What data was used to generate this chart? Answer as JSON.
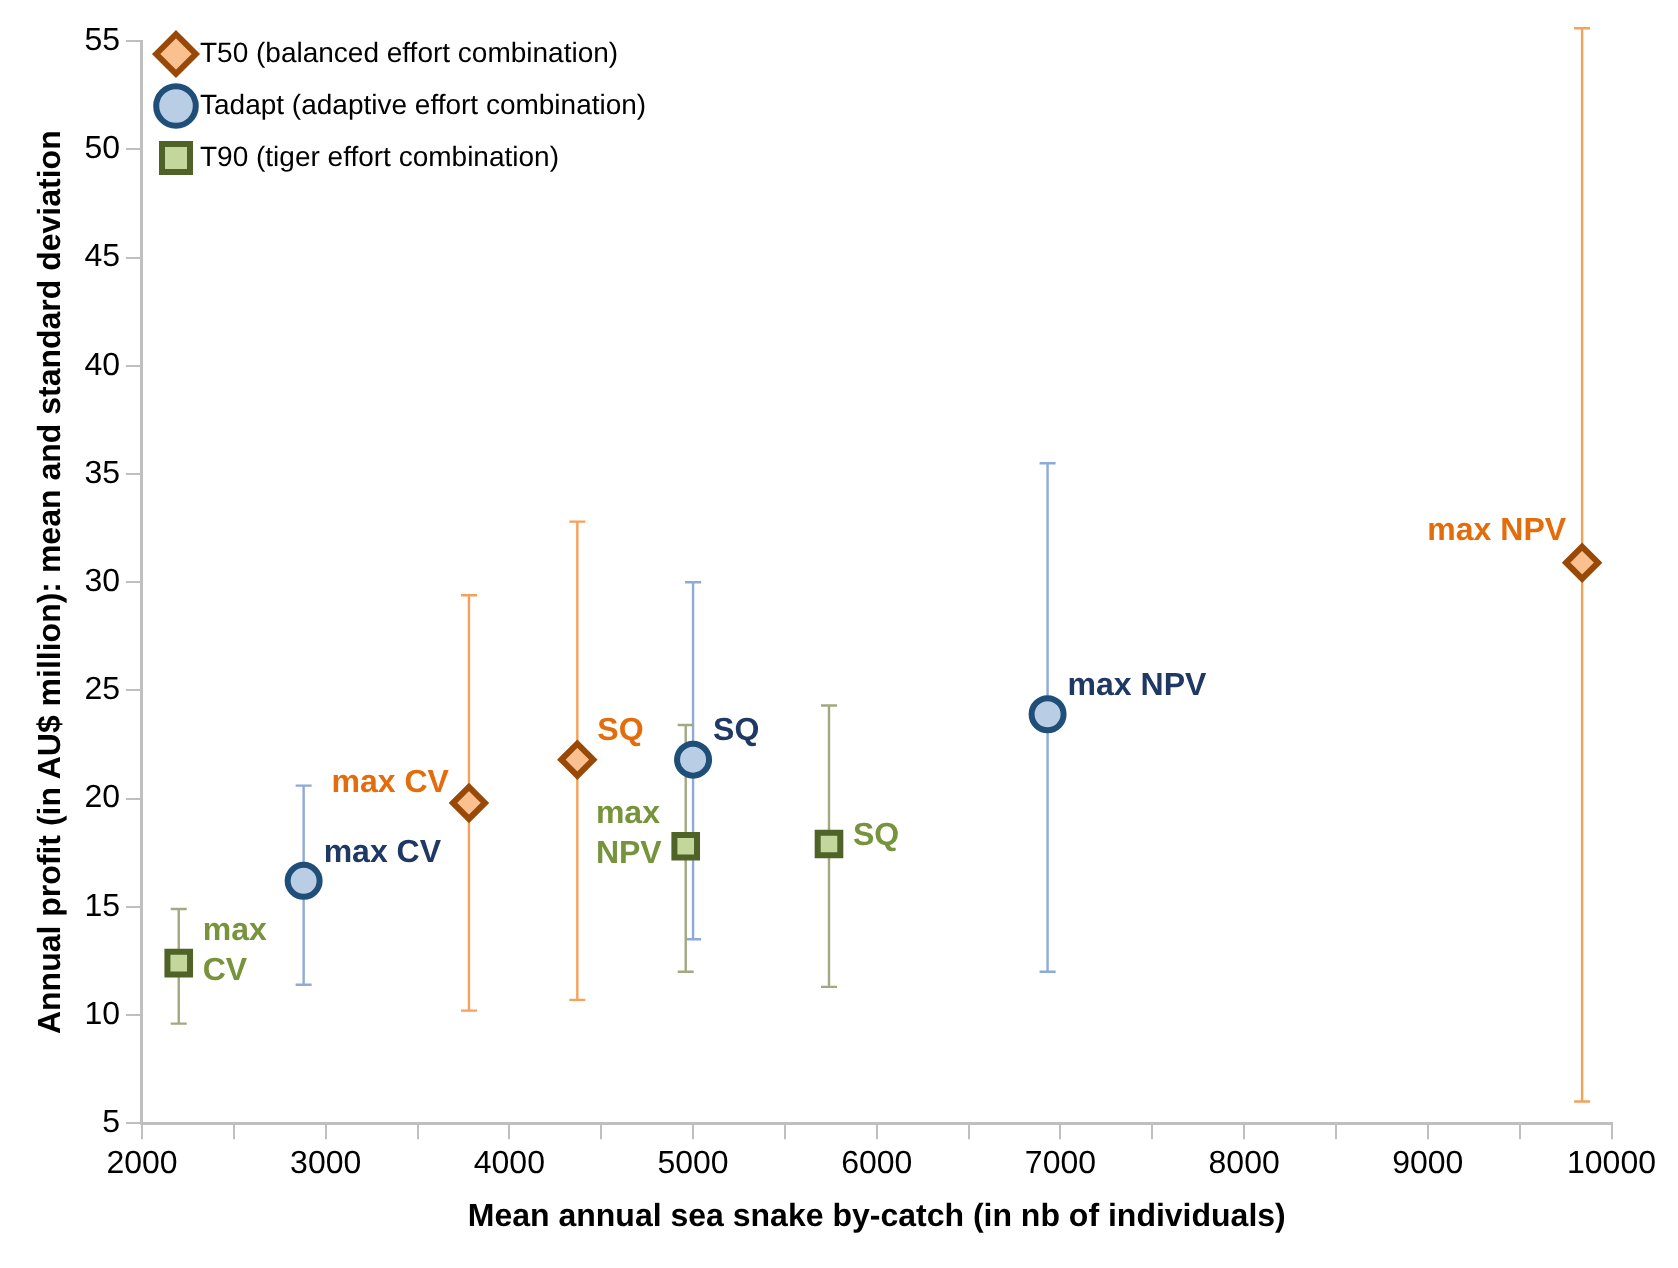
{
  "chart_data": {
    "type": "scatter",
    "xlabel": "Mean annual sea snake by-catch (in nb of individuals)",
    "ylabel": "Annual profit (in AU$ million): mean and standard deviation",
    "xlim": [
      2000,
      10000
    ],
    "xticks": [
      2000,
      {
        "value": 2500,
        "label": null
      },
      3000,
      {
        "value": 3500,
        "label": null
      },
      4000,
      {
        "value": 4500,
        "label": null
      },
      5000,
      {
        "value": 5500,
        "label": null
      },
      6000,
      {
        "value": 6500,
        "label": null
      },
      7000,
      {
        "value": 7500,
        "label": null
      },
      8000,
      {
        "value": 8500,
        "label": null
      },
      9000,
      {
        "value": 9500,
        "label": null
      },
      10000
    ],
    "ylim": [
      5,
      55
    ],
    "yticks": [
      5,
      10,
      15,
      20,
      25,
      30,
      35,
      40,
      45,
      50,
      55
    ],
    "grid": false,
    "legend": "top left",
    "series": [
      {
        "name": "T50 (balanced effort combination)",
        "color": "#984807",
        "marker": "diamond",
        "x": [
          3780,
          4370,
          9840
        ],
        "values": [
          19.8,
          21.8,
          30.9
        ],
        "errors": [
          [
            10.2,
            29.4
          ],
          [
            10.7,
            32.8
          ],
          [
            6.0,
            55.6
          ]
        ]
      },
      {
        "name": "Tadapt (adaptive effort combination)",
        "color": "#1f4e79",
        "marker": "circle",
        "x": [
          2880,
          5000,
          6930
        ],
        "values": [
          16.2,
          21.8,
          23.9
        ],
        "errors": [
          [
            11.4,
            20.6
          ],
          [
            13.5,
            30.0
          ],
          [
            12.0,
            35.5
          ]
        ]
      },
      {
        "name": "T90 (tiger effort combination)",
        "color": "#4f6228",
        "marker": "square",
        "x": [
          2200,
          4960,
          5740
        ],
        "values": [
          12.4,
          17.8,
          17.9
        ],
        "errors": [
          [
            9.6,
            14.9
          ],
          [
            12.0,
            23.4
          ],
          [
            11.3,
            24.3
          ]
        ]
      }
    ],
    "annotations": [
      {
        "text": "max CV",
        "x": 3780,
        "y": 19.8
      },
      {
        "text": "SQ",
        "x": 4370,
        "y": 21.8
      },
      {
        "text": "max NPV",
        "x": 9840,
        "y": 30.9
      },
      {
        "text": "max CV",
        "x": 2880,
        "y": 16.2
      },
      {
        "text": "SQ",
        "x": 5000,
        "y": 21.8
      },
      {
        "text": "max NPV",
        "x": 6930,
        "y": 23.9
      },
      {
        "text": "max CV",
        "x": 2200,
        "y": 12.4
      },
      {
        "text": "max NPV",
        "x": 4960,
        "y": 17.8
      },
      {
        "text": "SQ",
        "x": 5740,
        "y": 17.9
      }
    ]
  }
}
